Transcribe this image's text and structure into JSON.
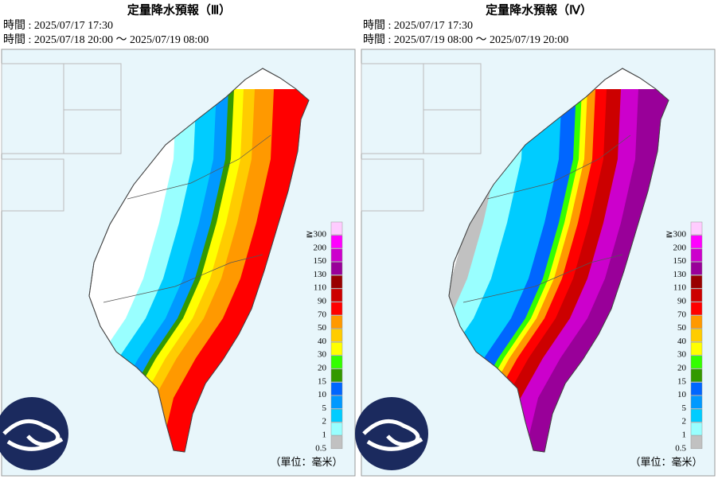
{
  "panels": [
    {
      "title": "定量降水預報（Ⅲ）",
      "issued": "時間 : 2025/07/17 17:30",
      "valid": "時間 : 2025/07/18 20:00 ～ 2025/07/19 08:00",
      "unit": "（單位：毫米）"
    },
    {
      "title": "定量降水預報（Ⅳ）",
      "issued": "時間 : 2025/07/17 17:30",
      "valid": "時間 : 2025/07/19 08:00 ～ 2025/07/19 20:00",
      "unit": "（單位：毫米）"
    }
  ],
  "legend": [
    {
      "label": "≧300",
      "color": "#ffccff"
    },
    {
      "label": "200",
      "color": "#ff00ff"
    },
    {
      "label": "150",
      "color": "#cc00cc"
    },
    {
      "label": "130",
      "color": "#990099"
    },
    {
      "label": "110",
      "color": "#990000"
    },
    {
      "label": "90",
      "color": "#cc0000"
    },
    {
      "label": "70",
      "color": "#ff0000"
    },
    {
      "label": "50",
      "color": "#ff9900"
    },
    {
      "label": "40",
      "color": "#ffcc00"
    },
    {
      "label": "30",
      "color": "#ffff00"
    },
    {
      "label": "20",
      "color": "#33ff00"
    },
    {
      "label": "15",
      "color": "#339900"
    },
    {
      "label": "10",
      "color": "#0066ff"
    },
    {
      "label": "5",
      "color": "#0099ff"
    },
    {
      "label": "2",
      "color": "#00ccff"
    },
    {
      "label": "1",
      "color": "#99ffff"
    },
    {
      "label": "0.5",
      "color": "#c1c1c1"
    }
  ]
}
